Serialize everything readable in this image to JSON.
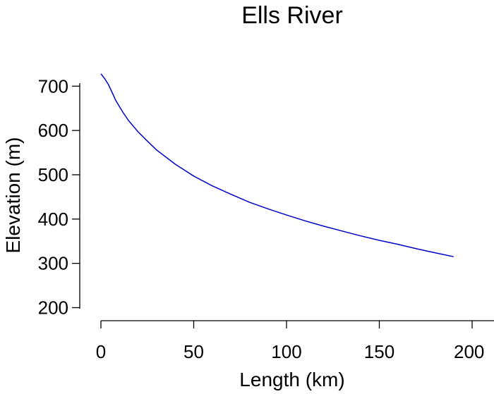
{
  "chart_data": {
    "type": "line",
    "title": "Ells River",
    "xlabel": "Length (km)",
    "ylabel": "Elevation (m)",
    "xlim": [
      0,
      200
    ],
    "ylim": [
      200,
      700
    ],
    "xticks": [
      0,
      50,
      100,
      150,
      200
    ],
    "yticks": [
      200,
      300,
      400,
      500,
      600,
      700
    ],
    "grid": false,
    "series": [
      {
        "color": "#0000cc",
        "x": [
          0,
          2,
          4,
          6,
          8,
          10,
          12,
          15,
          20,
          25,
          30,
          40,
          50,
          60,
          70,
          80,
          90,
          100,
          110,
          120,
          130,
          140,
          150,
          160,
          170,
          180,
          190
        ],
        "y": [
          728,
          717,
          704,
          686,
          668,
          654,
          640,
          622,
          597,
          576,
          556,
          524,
          497,
          475,
          456,
          438,
          423,
          409,
          396,
          384,
          373,
          362,
          352,
          343,
          333,
          324,
          315
        ]
      }
    ]
  }
}
